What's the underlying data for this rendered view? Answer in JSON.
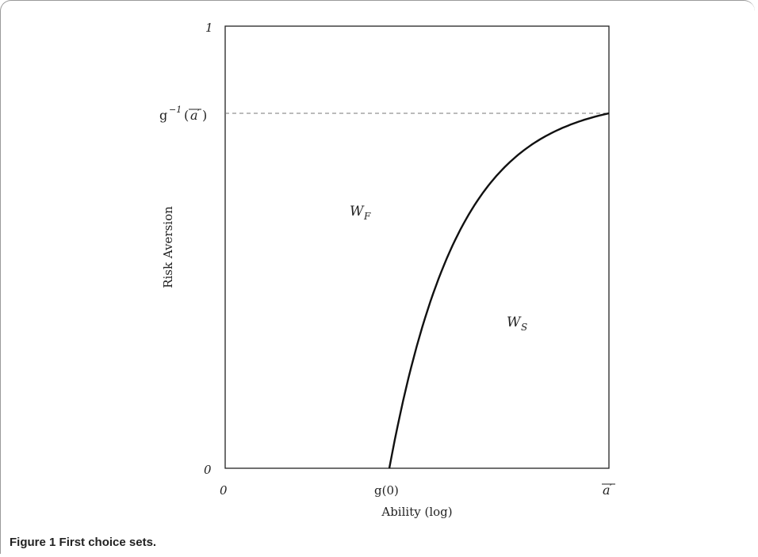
{
  "chart_data": {
    "type": "line",
    "title": "",
    "xlabel": "Ability (log)",
    "ylabel": "Risk Aversion",
    "x_ticks": {
      "origin": "0",
      "g0": "g(0)",
      "max_base": "a",
      "max_prime": "′"
    },
    "y_ticks": {
      "zero": "0",
      "one": "1",
      "ginv_base": "g",
      "ginv_sup": "−1",
      "ginv_open": "(",
      "ginv_arg": "a",
      "ginv_prime": "′",
      "ginv_close": ")"
    },
    "regions": {
      "wf_base": "W",
      "wf_sub": "F",
      "ws_base": "W",
      "ws_sub": "S"
    },
    "grid": false,
    "reference_line": "dashed horizontal at g^{-1}(a')",
    "boundary_curve": {
      "description": "concave increasing boundary from (g(0), 0) to (a', g^{-1}(a'))"
    }
  },
  "caption": {
    "label": "Figure 1",
    "text": "First choice sets."
  }
}
